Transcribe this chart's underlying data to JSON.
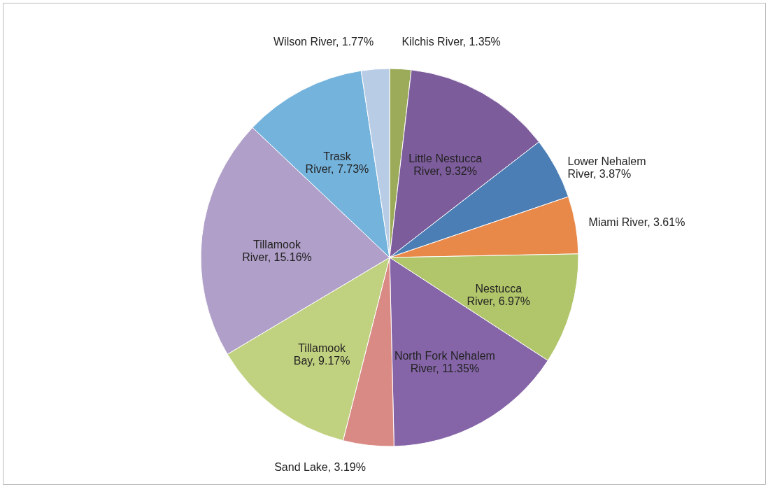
{
  "chart_data": {
    "type": "pie",
    "categories": [
      "Kilchis River",
      "Little Nestucca River",
      "Lower Nehalem River",
      "Miami River",
      "Nestucca River",
      "North Fork Nehalem River",
      "Sand Lake",
      "Tillamook Bay",
      "Tillamook River",
      "Trask River",
      "Wilson River"
    ],
    "values": [
      1.35,
      9.32,
      3.87,
      3.61,
      6.97,
      11.35,
      3.19,
      9.17,
      15.16,
      7.73,
      1.77
    ],
    "value_labels": [
      "1.35%",
      "9.32%",
      "3.87%",
      "3.61%",
      "6.97%",
      "11.35%",
      "3.19%",
      "9.17%",
      "15.16%",
      "7.73%",
      "1.77%"
    ],
    "colors": [
      "#9bab5a",
      "#7d5c9c",
      "#4a7eb5",
      "#e8894a",
      "#b1c56a",
      "#8565a8",
      "#d98a85",
      "#c0d17f",
      "#b09fc8",
      "#74b3dc",
      "#b8cce6"
    ]
  }
}
